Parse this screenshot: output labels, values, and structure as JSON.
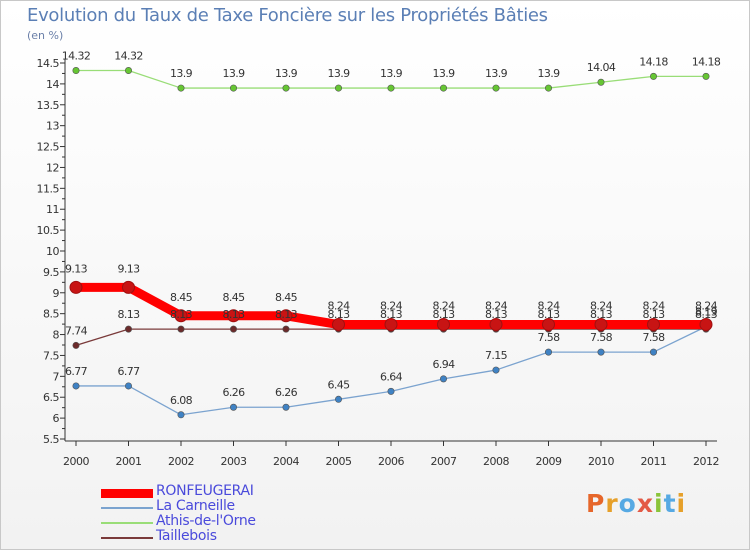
{
  "chart_data": {
    "type": "line",
    "title": "Evolution du Taux de Taxe Foncière sur les Propriétés Bâties",
    "ylabel": "(en %)",
    "xlabel": "",
    "x": [
      2000,
      2001,
      2002,
      2003,
      2004,
      2005,
      2006,
      2007,
      2008,
      2009,
      2010,
      2011,
      2012
    ],
    "ylim": [
      5.5,
      14.5
    ],
    "yticks": [
      "5.5",
      "6",
      "6.5",
      "7",
      "7.5",
      "8",
      "8.5",
      "9",
      "9.5",
      "10",
      "10.5",
      "11",
      "11.5",
      "12",
      "12.5",
      "13",
      "13.5",
      "14",
      "14.5"
    ],
    "grid": false,
    "legend": "bottom-left",
    "series": [
      {
        "name": "RONFEUGERAI",
        "color": "#ff0000",
        "point_color": "#c81414",
        "values": [
          9.13,
          9.13,
          8.45,
          8.45,
          8.45,
          8.24,
          8.24,
          8.24,
          8.24,
          8.24,
          8.24,
          8.24,
          8.24
        ],
        "labels": [
          "9.13",
          "9.13",
          "8.45",
          "8.45",
          "8.45",
          "8.24",
          "8.24",
          "8.24",
          "8.24",
          "8.24",
          "8.24",
          "8.24",
          "8.24"
        ]
      },
      {
        "name": "La Carneille",
        "color": "#7ba3cf",
        "point_color": "#3f82c4",
        "values": [
          6.77,
          6.77,
          6.08,
          6.26,
          6.26,
          6.45,
          6.64,
          6.94,
          7.15,
          7.58,
          7.58,
          7.58,
          8.19
        ],
        "labels": [
          "6.77",
          "6.77",
          "6.08",
          "6.26",
          "6.26",
          "6.45",
          "6.64",
          "6.94",
          "7.15",
          "7.58",
          "7.58",
          "7.58",
          "8.19"
        ]
      },
      {
        "name": "Athis-de-l'Orne",
        "color": "#99dd77",
        "point_color": "#66c633",
        "values": [
          14.32,
          14.32,
          13.9,
          13.9,
          13.9,
          13.9,
          13.9,
          13.9,
          13.9,
          13.9,
          14.04,
          14.18,
          14.18
        ],
        "labels": [
          "14.32",
          "14.32",
          "13.9",
          "13.9",
          "13.9",
          "13.9",
          "13.9",
          "13.9",
          "13.9",
          "13.9",
          "14.04",
          "14.18",
          "14.18"
        ]
      },
      {
        "name": "Taillebois",
        "color": "#7a3a3a",
        "point_color": "#6b2a2a",
        "values": [
          7.74,
          8.13,
          8.13,
          8.13,
          8.13,
          8.13,
          8.13,
          8.13,
          8.13,
          8.13,
          8.13,
          8.13,
          8.13
        ],
        "labels": [
          "7.74",
          "8.13",
          "8.13",
          "8.13",
          "8.13",
          "8.13",
          "8.13",
          "8.13",
          "8.13",
          "8.13",
          "8.13",
          "8.13",
          "8.13"
        ]
      }
    ]
  },
  "legend_items": [
    {
      "label": "RONFEUGERAI",
      "color": "#ff0000"
    },
    {
      "label": "La Carneille",
      "color": "#7ba3cf"
    },
    {
      "label": "Athis-de-l'Orne",
      "color": "#99dd77"
    },
    {
      "label": "Taillebois",
      "color": "#7a3a3a"
    }
  ],
  "logo": {
    "letters": [
      "P",
      "r",
      "o",
      "x",
      "i",
      "t",
      "i"
    ],
    "colors": [
      "#e6662a",
      "#e6a02a",
      "#56a9e3",
      "#e35a46",
      "#8ac43a",
      "#56a9e3",
      "#e6a02a"
    ]
  }
}
